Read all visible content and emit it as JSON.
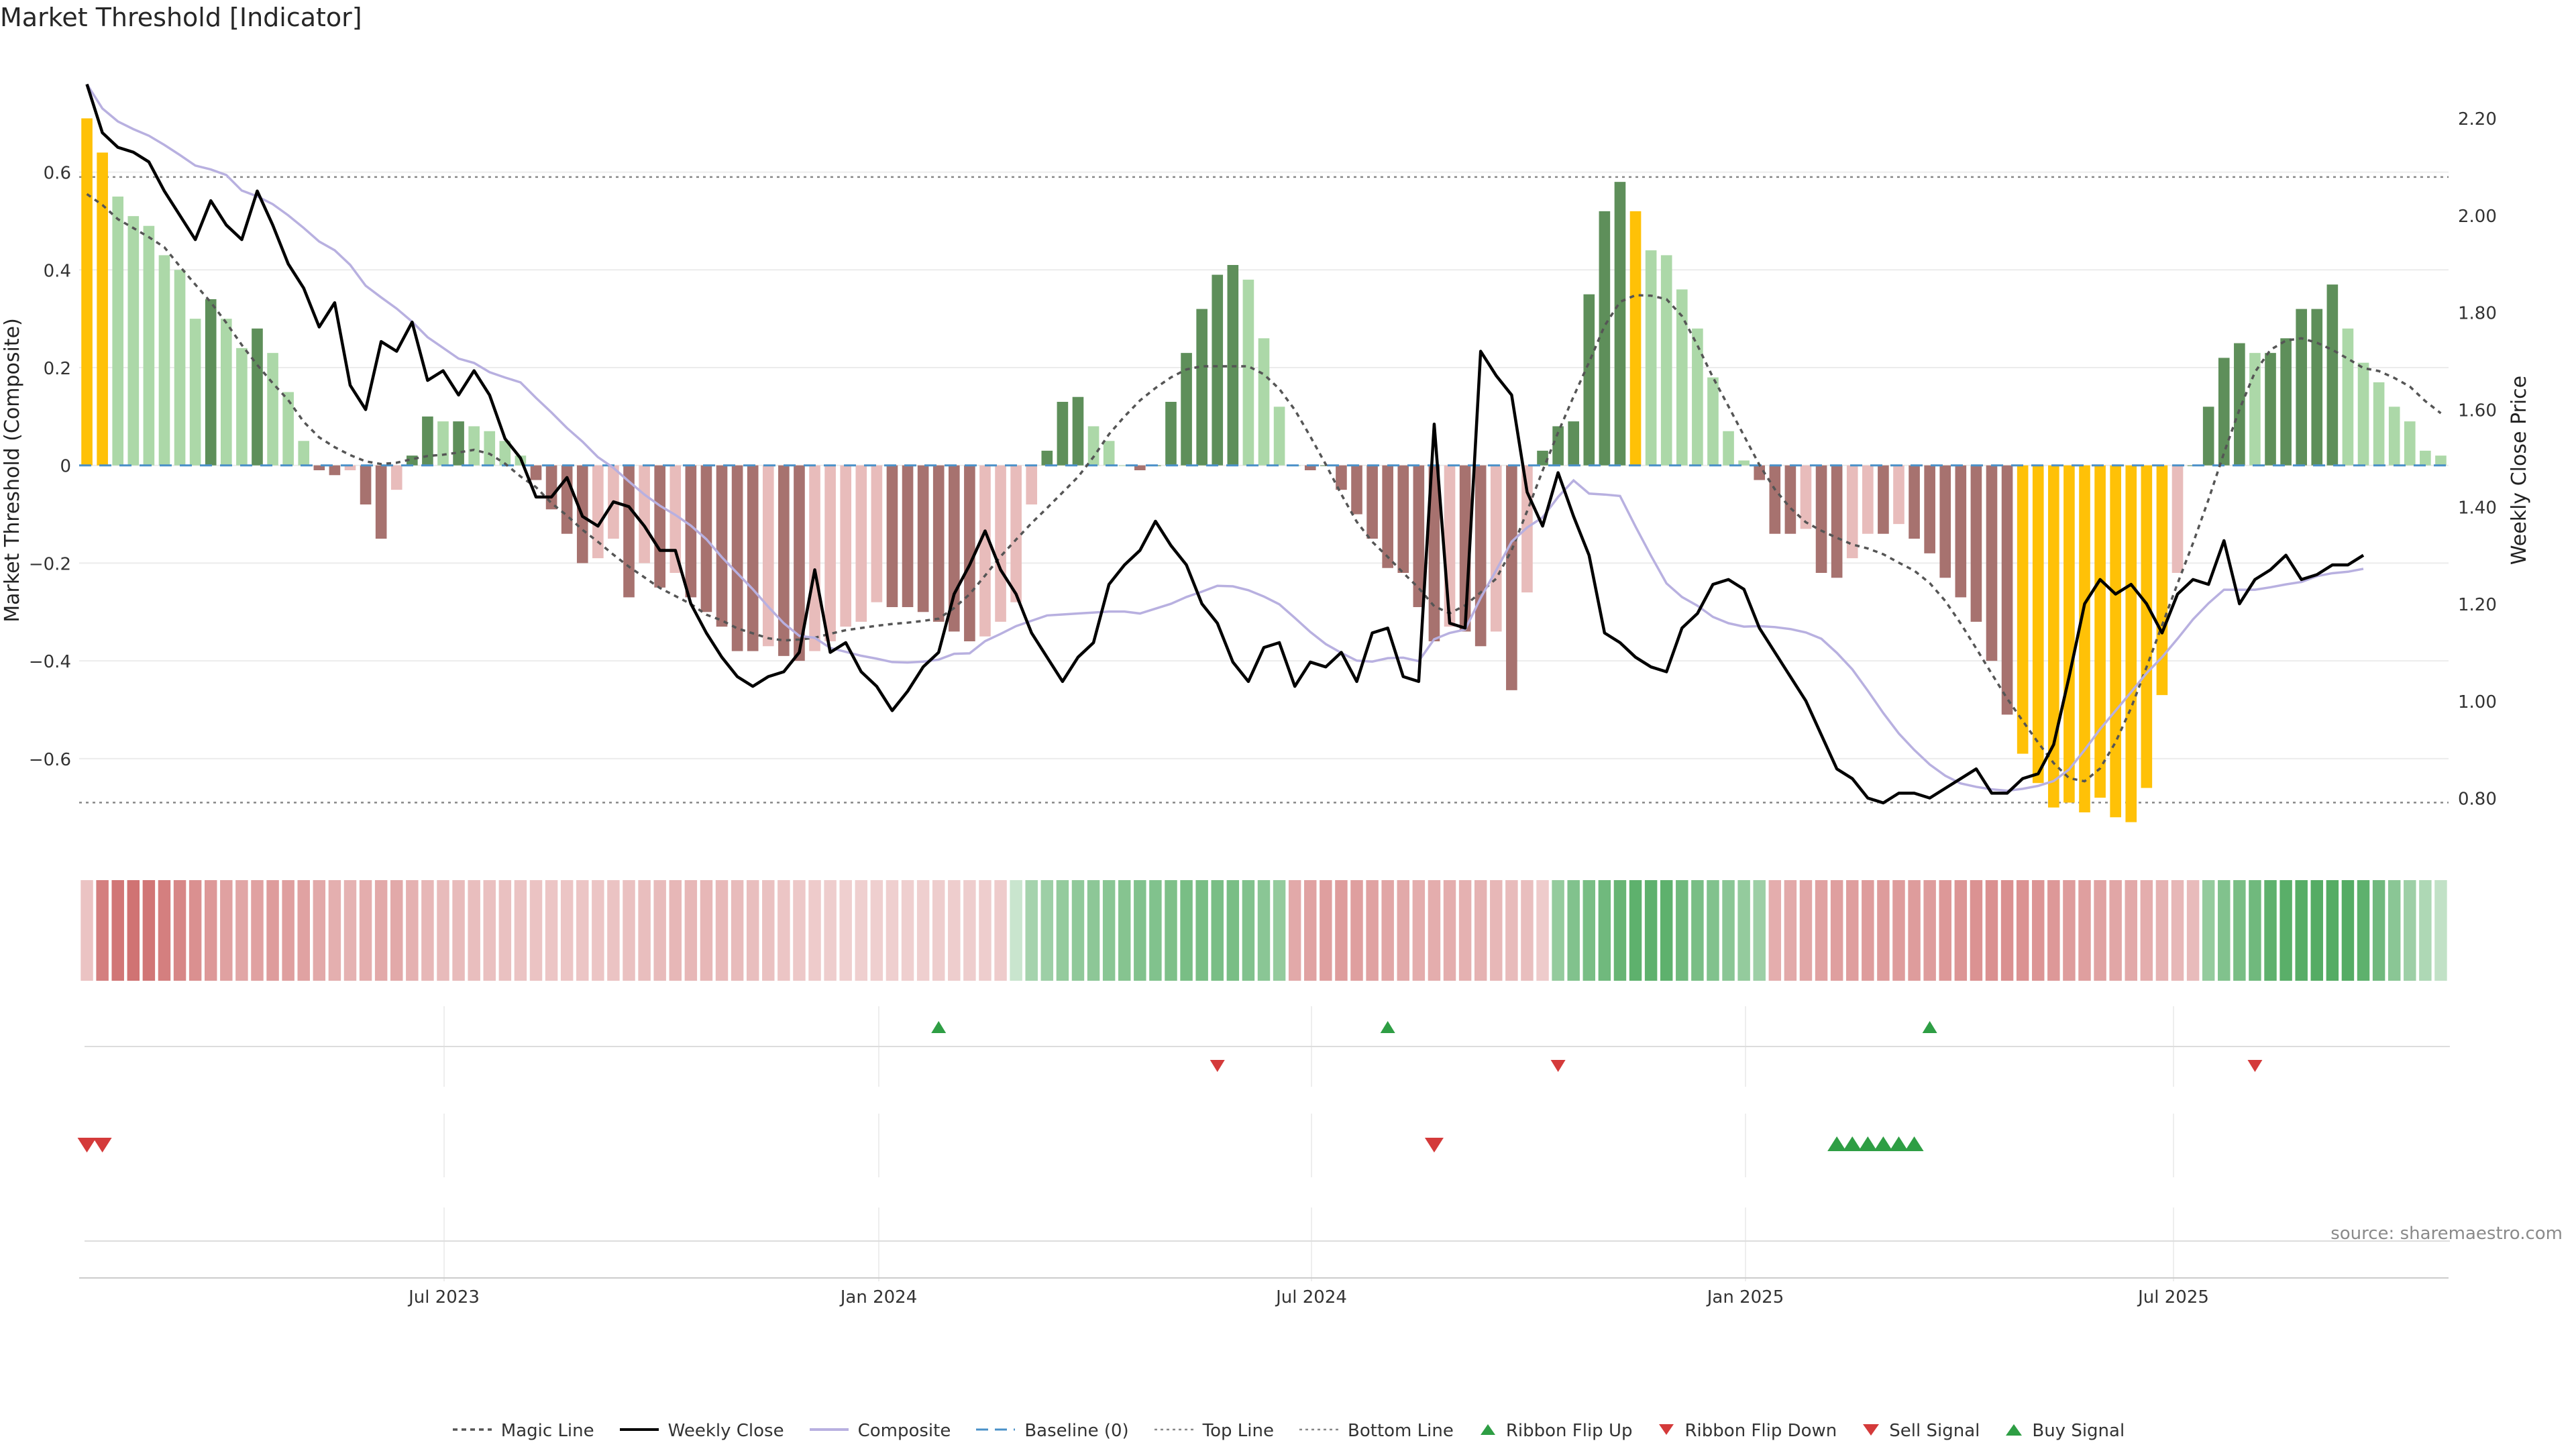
{
  "title": "Market Threshold [Indicator]",
  "source": "source: sharemaestro.com",
  "colors": {
    "bar_pos_light": "#acd8a8",
    "bar_pos_dark": "#5e8f5a",
    "bar_neg_light": "#e8bcbb",
    "bar_neg_dark": "#a7726f",
    "bar_extreme": "#ffc107",
    "weekly_close": "#000000",
    "composite": "#b8b0e0",
    "magic_line": "#555555",
    "buy": "#2e9e44",
    "sell": "#d43a3a"
  },
  "legend": [
    {
      "key": "magic",
      "label": "Magic Line"
    },
    {
      "key": "close",
      "label": "Weekly Close"
    },
    {
      "key": "composite",
      "label": "Composite"
    },
    {
      "key": "baseline",
      "label": "Baseline (0)"
    },
    {
      "key": "top",
      "label": "Top Line"
    },
    {
      "key": "bottom",
      "label": "Bottom Line"
    },
    {
      "key": "flipup",
      "label": "Ribbon Flip Up"
    },
    {
      "key": "flipdown",
      "label": "Ribbon Flip Down"
    },
    {
      "key": "sell",
      "label": "Sell Signal"
    },
    {
      "key": "buy",
      "label": "Buy Signal"
    }
  ],
  "chart_data": {
    "type": "bar",
    "ylabel": "Market Threshold (Composite)",
    "y2label": "Weekly Close Price",
    "ylim": [
      -0.78,
      0.76
    ],
    "y2lim": [
      0.7,
      2.25
    ],
    "yticks": [
      "0.6",
      "0.4",
      "0.2",
      "0",
      "−0.2",
      "−0.4",
      "−0.6"
    ],
    "y2ticks": [
      "2.20",
      "2.00",
      "1.80",
      "1.60",
      "1.40",
      "1.20",
      "1.00",
      "0.80"
    ],
    "xticks": [
      "Jul 2023",
      "Jan 2024",
      "Jul 2024",
      "Jan 2025",
      "Jul 2025"
    ],
    "top_line": 0.59,
    "bottom_line": -0.69,
    "baseline": 0,
    "composite_bars": [
      0.71,
      0.64,
      0.55,
      0.51,
      0.49,
      0.43,
      0.4,
      0.3,
      0.34,
      0.3,
      0.24,
      0.28,
      0.23,
      0.15,
      0.05,
      -0.01,
      -0.02,
      -0.01,
      -0.08,
      -0.15,
      -0.05,
      0.02,
      0.1,
      0.09,
      0.09,
      0.08,
      0.07,
      0.05,
      0.02,
      -0.03,
      -0.09,
      -0.14,
      -0.2,
      -0.19,
      -0.15,
      -0.27,
      -0.2,
      -0.25,
      -0.22,
      -0.27,
      -0.3,
      -0.33,
      -0.38,
      -0.38,
      -0.37,
      -0.39,
      -0.4,
      -0.38,
      -0.36,
      -0.33,
      -0.32,
      -0.28,
      -0.29,
      -0.29,
      -0.3,
      -0.32,
      -0.34,
      -0.36,
      -0.35,
      -0.32,
      -0.28,
      -0.08,
      0.03,
      0.13,
      0.14,
      0.08,
      0.05,
      0.0,
      -0.01,
      0.0,
      0.13,
      0.23,
      0.32,
      0.39,
      0.41,
      0.38,
      0.26,
      0.12,
      0.0,
      -0.01,
      0.0,
      -0.05,
      -0.1,
      -0.15,
      -0.21,
      -0.22,
      -0.29,
      -0.36,
      -0.33,
      -0.34,
      -0.37,
      -0.34,
      -0.46,
      -0.26,
      0.03,
      0.08,
      0.09,
      0.35,
      0.52,
      0.58,
      0.52,
      0.44,
      0.43,
      0.36,
      0.28,
      0.18,
      0.07,
      0.01,
      -0.03,
      -0.14,
      -0.14,
      -0.13,
      -0.22,
      -0.23,
      -0.19,
      -0.14,
      -0.14,
      -0.12,
      -0.15,
      -0.18,
      -0.23,
      -0.27,
      -0.32,
      -0.4,
      -0.51,
      -0.59,
      -0.65,
      -0.7,
      -0.69,
      -0.71,
      -0.68,
      -0.72,
      -0.73,
      -0.66,
      -0.47,
      -0.22,
      0.0,
      0.12,
      0.22,
      0.25,
      0.23,
      0.23,
      0.26,
      0.32,
      0.32,
      0.37,
      0.28,
      0.21,
      0.17,
      0.12,
      0.09,
      0.03,
      0.02
    ],
    "extreme_bars": [
      0,
      1,
      100,
      125,
      126,
      127,
      128,
      129,
      130,
      131,
      132,
      133,
      134
    ],
    "weekly_close": [
      2.27,
      2.17,
      2.14,
      2.13,
      2.11,
      2.05,
      2.0,
      1.95,
      2.03,
      1.98,
      1.95,
      2.05,
      1.98,
      1.9,
      1.85,
      1.77,
      1.82,
      1.65,
      1.6,
      1.74,
      1.72,
      1.78,
      1.66,
      1.68,
      1.63,
      1.68,
      1.63,
      1.54,
      1.5,
      1.42,
      1.42,
      1.46,
      1.38,
      1.36,
      1.41,
      1.4,
      1.36,
      1.31,
      1.31,
      1.2,
      1.14,
      1.09,
      1.05,
      1.03,
      1.05,
      1.06,
      1.1,
      1.27,
      1.1,
      1.12,
      1.06,
      1.03,
      0.98,
      1.02,
      1.07,
      1.1,
      1.22,
      1.28,
      1.35,
      1.27,
      1.22,
      1.14,
      1.09,
      1.04,
      1.09,
      1.12,
      1.24,
      1.28,
      1.31,
      1.37,
      1.32,
      1.28,
      1.2,
      1.16,
      1.08,
      1.04,
      1.11,
      1.12,
      1.03,
      1.08,
      1.07,
      1.1,
      1.04,
      1.14,
      1.15,
      1.05,
      1.04,
      1.57,
      1.16,
      1.15,
      1.72,
      1.67,
      1.63,
      1.43,
      1.36,
      1.47,
      1.38,
      1.3,
      1.14,
      1.12,
      1.09,
      1.07,
      1.06,
      1.15,
      1.18,
      1.24,
      1.25,
      1.23,
      1.15,
      1.1,
      1.05,
      1.0,
      0.93,
      0.86,
      0.84,
      0.8,
      0.79,
      0.81,
      0.81,
      0.8,
      0.82,
      0.84,
      0.86,
      0.81,
      0.81,
      0.84,
      0.85,
      0.91,
      1.05,
      1.2,
      1.25,
      1.22,
      1.24,
      1.2,
      1.14,
      1.22,
      1.25,
      1.24,
      1.33,
      1.2,
      1.25,
      1.27,
      1.3,
      1.25,
      1.26,
      1.28,
      1.28,
      1.3
    ],
    "close_dates_span": "weekly, 2023 Q1 to 2025 Q4",
    "ribbon": [
      -0.15,
      -0.55,
      -0.6,
      -0.62,
      -0.6,
      -0.55,
      -0.5,
      -0.45,
      -0.4,
      -0.35,
      -0.32,
      -0.35,
      -0.38,
      -0.36,
      -0.34,
      -0.3,
      -0.27,
      -0.25,
      -0.28,
      -0.3,
      -0.3,
      -0.26,
      -0.22,
      -0.2,
      -0.2,
      -0.18,
      -0.17,
      -0.16,
      -0.15,
      -0.15,
      -0.14,
      -0.14,
      -0.14,
      -0.14,
      -0.15,
      -0.16,
      -0.18,
      -0.2,
      -0.22,
      -0.22,
      -0.22,
      -0.21,
      -0.2,
      -0.18,
      -0.16,
      -0.14,
      -0.12,
      -0.1,
      -0.09,
      -0.08,
      -0.08,
      -0.08,
      -0.08,
      -0.08,
      -0.08,
      -0.09,
      -0.09,
      -0.09,
      -0.09,
      -0.1,
      0.1,
      0.3,
      0.35,
      0.4,
      0.42,
      0.44,
      0.46,
      0.48,
      0.5,
      0.5,
      0.52,
      0.55,
      0.55,
      0.55,
      0.55,
      0.5,
      0.45,
      0.4,
      -0.3,
      -0.34,
      -0.36,
      -0.38,
      -0.36,
      -0.34,
      -0.32,
      -0.3,
      -0.28,
      -0.28,
      -0.28,
      -0.26,
      -0.25,
      -0.22,
      -0.2,
      -0.18,
      -0.1,
      0.4,
      0.5,
      0.55,
      0.6,
      0.65,
      0.7,
      0.7,
      0.7,
      0.6,
      0.55,
      0.5,
      0.45,
      0.4,
      0.35,
      -0.28,
      -0.3,
      -0.32,
      -0.35,
      -0.36,
      -0.37,
      -0.38,
      -0.38,
      -0.38,
      -0.38,
      -0.38,
      -0.4,
      -0.42,
      -0.44,
      -0.45,
      -0.45,
      -0.44,
      -0.42,
      -0.4,
      -0.38,
      -0.36,
      -0.34,
      -0.32,
      -0.3,
      -0.28,
      -0.25,
      -0.22,
      -0.2,
      0.4,
      0.5,
      0.55,
      0.6,
      0.7,
      0.72,
      0.74,
      0.75,
      0.75,
      0.75,
      0.7,
      0.6,
      0.45,
      0.35,
      0.25,
      0.15
    ],
    "ribbon_flip_up": [
      55,
      84,
      119
    ],
    "ribbon_flip_down": [
      73,
      95,
      140
    ],
    "sell_signal": [
      0,
      1,
      87
    ],
    "buy_signal": [
      113,
      114,
      115,
      116,
      117,
      118
    ]
  }
}
